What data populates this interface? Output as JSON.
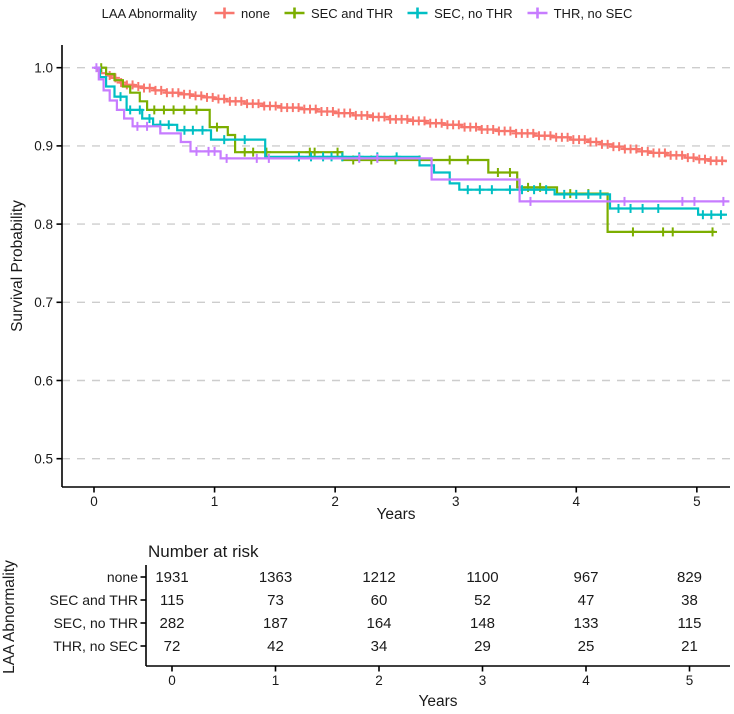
{
  "palette": {
    "none": "#F8766D",
    "sec_and_thr": "#7CAE00",
    "sec_no_thr": "#00BFC4",
    "thr_no_sec": "#C77CFF",
    "grid": "#CDCDCD",
    "axis": "#000000",
    "text": "#1a1a1a"
  },
  "legend": {
    "title": "LAA Abnormality",
    "items": [
      {
        "label": "none",
        "color": "#F8766D"
      },
      {
        "label": "SEC and THR",
        "color": "#7CAE00"
      },
      {
        "label": "SEC, no THR",
        "color": "#00BFC4"
      },
      {
        "label": "THR, no SEC",
        "color": "#C77CFF"
      }
    ]
  },
  "chart_data": {
    "type": "line",
    "subtype": "kaplan-meier-step",
    "title": "",
    "xlabel": "Years",
    "ylabel": "Survival Probability",
    "xlim": [
      -0.27,
      5.3
    ],
    "ylim": [
      0.46,
      1.03
    ],
    "grid": {
      "horizontal": true,
      "style": "dashed",
      "color": "#CDCDCD"
    },
    "x_ticks": [
      {
        "label": "0",
        "v": 0
      },
      {
        "label": "1",
        "v": 1
      },
      {
        "label": "2",
        "v": 2
      },
      {
        "label": "3",
        "v": 3
      },
      {
        "label": "4",
        "v": 4
      },
      {
        "label": "5",
        "v": 5
      }
    ],
    "y_ticks": [
      {
        "label": "1.0",
        "v": 1.0
      },
      {
        "label": "0.9",
        "v": 0.9
      },
      {
        "label": "0.8",
        "v": 0.8
      },
      {
        "label": "0.7",
        "v": 0.7
      },
      {
        "label": "0.6",
        "v": 0.6
      },
      {
        "label": "0.5",
        "v": 0.5
      }
    ],
    "legend_title": "LAA Abnormality",
    "series": [
      {
        "name": "none",
        "color": "#F8766D",
        "steps": [
          [
            0,
            1.0
          ],
          [
            0.03,
            0.996
          ],
          [
            0.06,
            0.993
          ],
          [
            0.1,
            0.99
          ],
          [
            0.14,
            0.987
          ],
          [
            0.18,
            0.984
          ],
          [
            0.22,
            0.981
          ],
          [
            0.27,
            0.978
          ],
          [
            0.33,
            0.976
          ],
          [
            0.4,
            0.974
          ],
          [
            0.5,
            0.971
          ],
          [
            0.6,
            0.968
          ],
          [
            0.7,
            0.966
          ],
          [
            0.8,
            0.964
          ],
          [
            0.9,
            0.962
          ],
          [
            1.0,
            0.96
          ],
          [
            1.1,
            0.957
          ],
          [
            1.25,
            0.954
          ],
          [
            1.4,
            0.951
          ],
          [
            1.55,
            0.949
          ],
          [
            1.7,
            0.947
          ],
          [
            1.85,
            0.944
          ],
          [
            2.0,
            0.942
          ],
          [
            2.15,
            0.939
          ],
          [
            2.3,
            0.937
          ],
          [
            2.45,
            0.934
          ],
          [
            2.6,
            0.932
          ],
          [
            2.75,
            0.929
          ],
          [
            2.9,
            0.927
          ],
          [
            3.05,
            0.924
          ],
          [
            3.2,
            0.921
          ],
          [
            3.35,
            0.919
          ],
          [
            3.5,
            0.916
          ],
          [
            3.65,
            0.913
          ],
          [
            3.8,
            0.911
          ],
          [
            3.95,
            0.908
          ],
          [
            4.1,
            0.905
          ],
          [
            4.2,
            0.902
          ],
          [
            4.3,
            0.899
          ],
          [
            4.4,
            0.896
          ],
          [
            4.5,
            0.893
          ],
          [
            4.6,
            0.891
          ],
          [
            4.75,
            0.888
          ],
          [
            4.9,
            0.885
          ],
          [
            5.0,
            0.883
          ],
          [
            5.1,
            0.881
          ],
          [
            5.24,
            0.879
          ]
        ],
        "censor_marks": {
          "mode": "dense",
          "start": 0.13,
          "end": 5.21,
          "count": 108
        }
      },
      {
        "name": "SEC and THR",
        "color": "#7CAE00",
        "steps": [
          [
            0,
            1.0
          ],
          [
            0.1,
            0.992
          ],
          [
            0.17,
            0.984
          ],
          [
            0.24,
            0.976
          ],
          [
            0.3,
            0.968
          ],
          [
            0.38,
            0.957
          ],
          [
            0.44,
            0.946
          ],
          [
            0.96,
            0.924
          ],
          [
            1.11,
            0.914
          ],
          [
            1.17,
            0.892
          ],
          [
            2.06,
            0.882
          ],
          [
            3.27,
            0.866
          ],
          [
            3.51,
            0.847
          ],
          [
            3.84,
            0.839
          ],
          [
            4.26,
            0.79
          ],
          [
            5.15,
            0.79
          ]
        ],
        "censor_marks": {
          "mode": "list",
          "x": [
            0.06,
            0.5,
            0.58,
            0.66,
            0.75,
            0.85,
            1.02,
            1.25,
            1.32,
            1.43,
            1.79,
            1.83,
            2.02,
            2.15,
            2.3,
            2.5,
            2.7,
            2.95,
            3.1,
            3.35,
            3.45,
            3.6,
            3.7,
            3.95,
            4.1,
            4.47,
            4.72,
            4.8,
            5.13
          ]
        }
      },
      {
        "name": "SEC, no THR",
        "color": "#00BFC4",
        "steps": [
          [
            0,
            1.0
          ],
          [
            0.05,
            0.988
          ],
          [
            0.1,
            0.976
          ],
          [
            0.17,
            0.963
          ],
          [
            0.27,
            0.946
          ],
          [
            0.4,
            0.935
          ],
          [
            0.49,
            0.927
          ],
          [
            0.69,
            0.92
          ],
          [
            0.97,
            0.908
          ],
          [
            1.42,
            0.886
          ],
          [
            2.7,
            0.875
          ],
          [
            2.82,
            0.866
          ],
          [
            2.95,
            0.852
          ],
          [
            3.03,
            0.844
          ],
          [
            3.82,
            0.838
          ],
          [
            4.28,
            0.82
          ],
          [
            5.01,
            0.812
          ],
          [
            5.25,
            0.812
          ]
        ],
        "censor_marks": {
          "mode": "list",
          "x": [
            0.22,
            0.3,
            0.38,
            0.46,
            0.55,
            0.62,
            0.75,
            0.82,
            0.9,
            1.08,
            1.25,
            1.7,
            1.8,
            1.9,
            1.97,
            2.06,
            2.2,
            2.35,
            2.51,
            3.1,
            3.2,
            3.3,
            3.45,
            3.55,
            3.65,
            3.75,
            3.9,
            4.0,
            4.1,
            4.2,
            4.35,
            4.45,
            4.55,
            4.68,
            5.05,
            5.12,
            5.2
          ]
        }
      },
      {
        "name": "THR, no SEC",
        "color": "#C77CFF",
        "steps": [
          [
            0,
            1.0
          ],
          [
            0.04,
            0.985
          ],
          [
            0.08,
            0.971
          ],
          [
            0.13,
            0.958
          ],
          [
            0.19,
            0.946
          ],
          [
            0.25,
            0.935
          ],
          [
            0.32,
            0.925
          ],
          [
            0.55,
            0.916
          ],
          [
            0.72,
            0.905
          ],
          [
            0.8,
            0.893
          ],
          [
            1.05,
            0.884
          ],
          [
            2.8,
            0.857
          ],
          [
            3.53,
            0.829
          ],
          [
            5.27,
            0.829
          ]
        ],
        "censor_marks": {
          "mode": "list",
          "x": [
            0.02,
            0.36,
            0.44,
            0.85,
            0.95,
            1.0,
            1.1,
            1.35,
            1.45,
            2.2,
            2.35,
            3.62,
            4.4,
            4.88,
            4.98,
            5.22
          ]
        }
      }
    ]
  },
  "risk_table": {
    "title": "Number at risk",
    "axis_label": "LAA Abnormality",
    "xlabel": "Years",
    "x_ticks": [
      "0",
      "1",
      "2",
      "3",
      "4",
      "5"
    ],
    "rows": [
      {
        "label": "none",
        "color": "#F8766D",
        "values": [
          1931,
          1363,
          1212,
          1100,
          967,
          829
        ]
      },
      {
        "label": "SEC and THR",
        "color": "#7CAE00",
        "values": [
          115,
          73,
          60,
          52,
          47,
          38
        ]
      },
      {
        "label": "SEC, no THR",
        "color": "#00BFC4",
        "values": [
          282,
          187,
          164,
          148,
          133,
          115
        ]
      },
      {
        "label": "THR, no SEC",
        "color": "#C77CFF",
        "values": [
          72,
          42,
          34,
          29,
          25,
          21
        ]
      }
    ]
  }
}
